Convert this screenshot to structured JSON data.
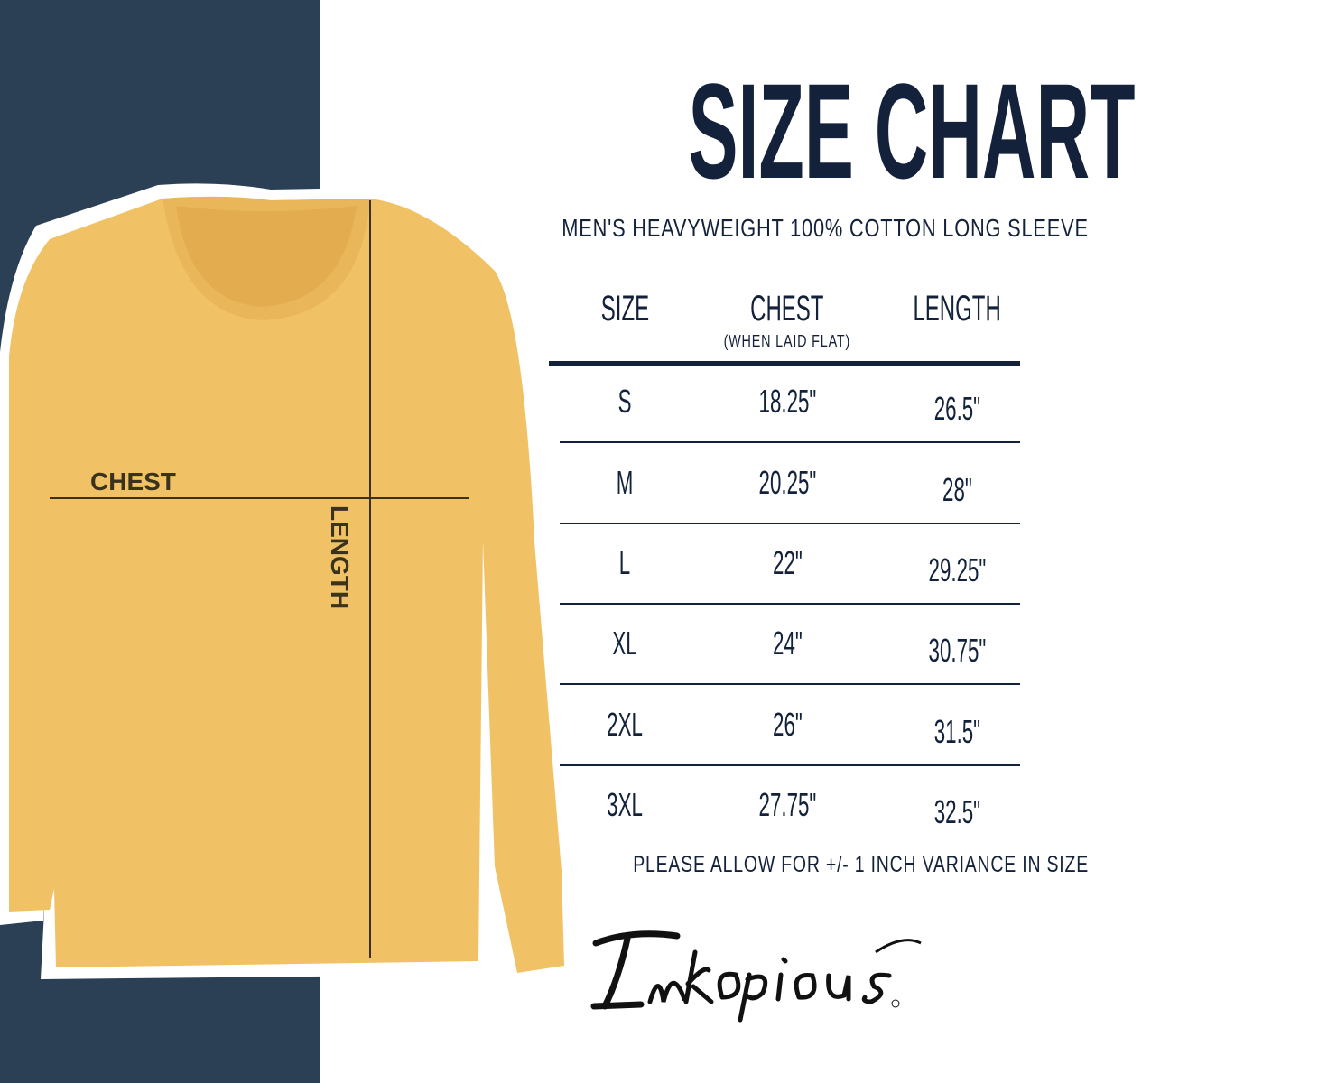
{
  "title": "SIZE CHART",
  "subtitle": "MEN'S HEAVYWEIGHT 100% COTTON LONG SLEEVE",
  "colors": {
    "navy_panel": "#2c4055",
    "text": "#13223a",
    "shirt": "#f1c265"
  },
  "shirt_labels": {
    "chest": "CHEST",
    "length": "LENGTH"
  },
  "table": {
    "headers": {
      "size": "SIZE",
      "chest": "CHEST",
      "chest_note": "(WHEN LAID FLAT)",
      "length": "LENGTH"
    },
    "rows": [
      {
        "size": "S",
        "chest": "18.25\"",
        "length": "26.5\""
      },
      {
        "size": "M",
        "chest": "20.25\"",
        "length": "28\""
      },
      {
        "size": "L",
        "chest": "22\"",
        "length": "29.25\""
      },
      {
        "size": "XL",
        "chest": "24\"",
        "length": "30.75\""
      },
      {
        "size": "2XL",
        "chest": "26\"",
        "length": "31.5\""
      },
      {
        "size": "3XL",
        "chest": "27.75\"",
        "length": "32.5\""
      }
    ]
  },
  "note": "PLEASE ALLOW FOR +/- 1 INCH VARIANCE IN SIZE",
  "brand": "Inkopious"
}
